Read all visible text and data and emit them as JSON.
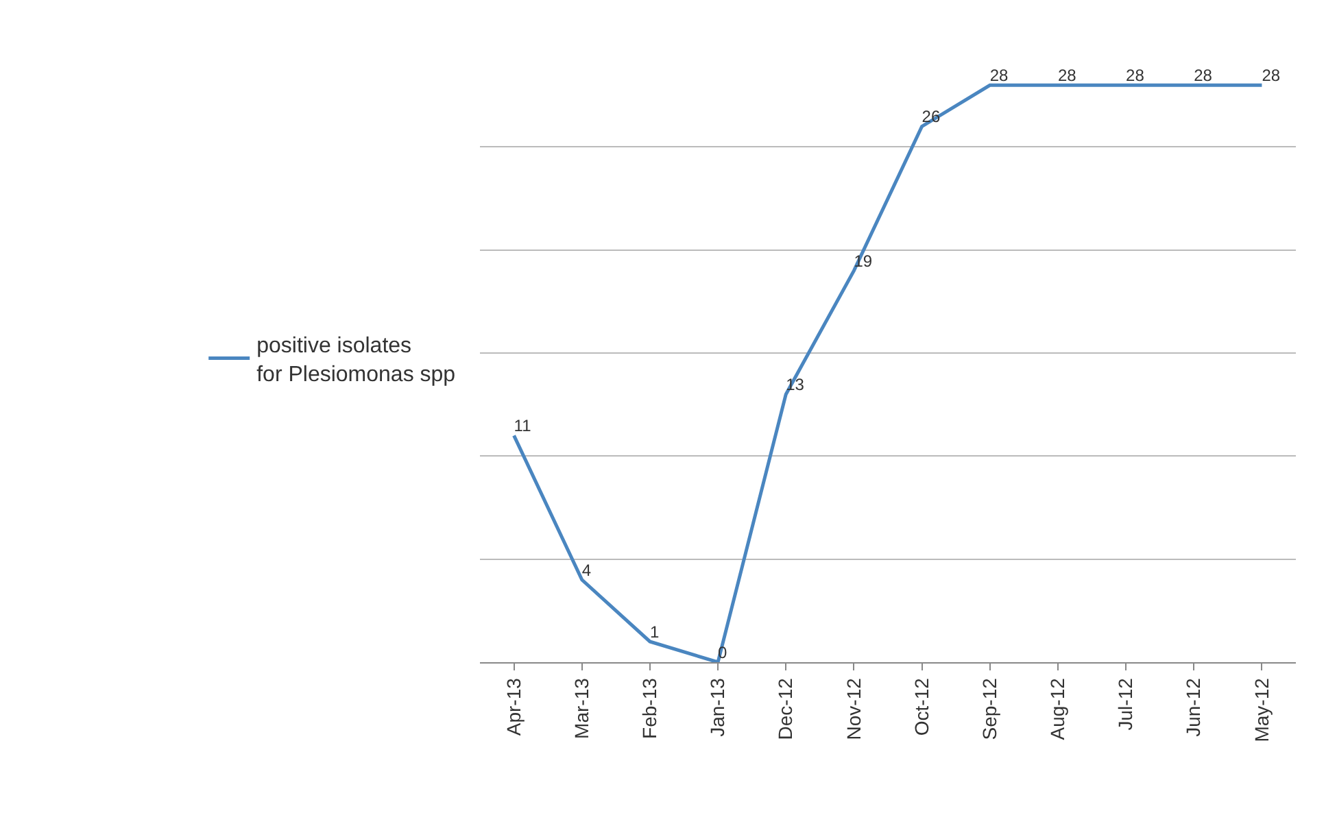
{
  "chart_data": {
    "type": "line",
    "categories": [
      "Apr-13",
      "Mar-13",
      "Feb-13",
      "Jan-13",
      "Dec-12",
      "Nov-12",
      "Oct-12",
      "Sep-12",
      "Aug-12",
      "Jul-12",
      "Jun-12",
      "May-12"
    ],
    "series": [
      {
        "name": "positive isolates for Plesiomonas spp",
        "color": "#4a86c0",
        "values": [
          11,
          4,
          1,
          0,
          13,
          19,
          26,
          28,
          28,
          28,
          28,
          28
        ]
      }
    ],
    "tick_labels": "x",
    "grid": "y",
    "legend": "left",
    "data_labels": true,
    "marker": "none",
    "line_style": "solid"
  }
}
